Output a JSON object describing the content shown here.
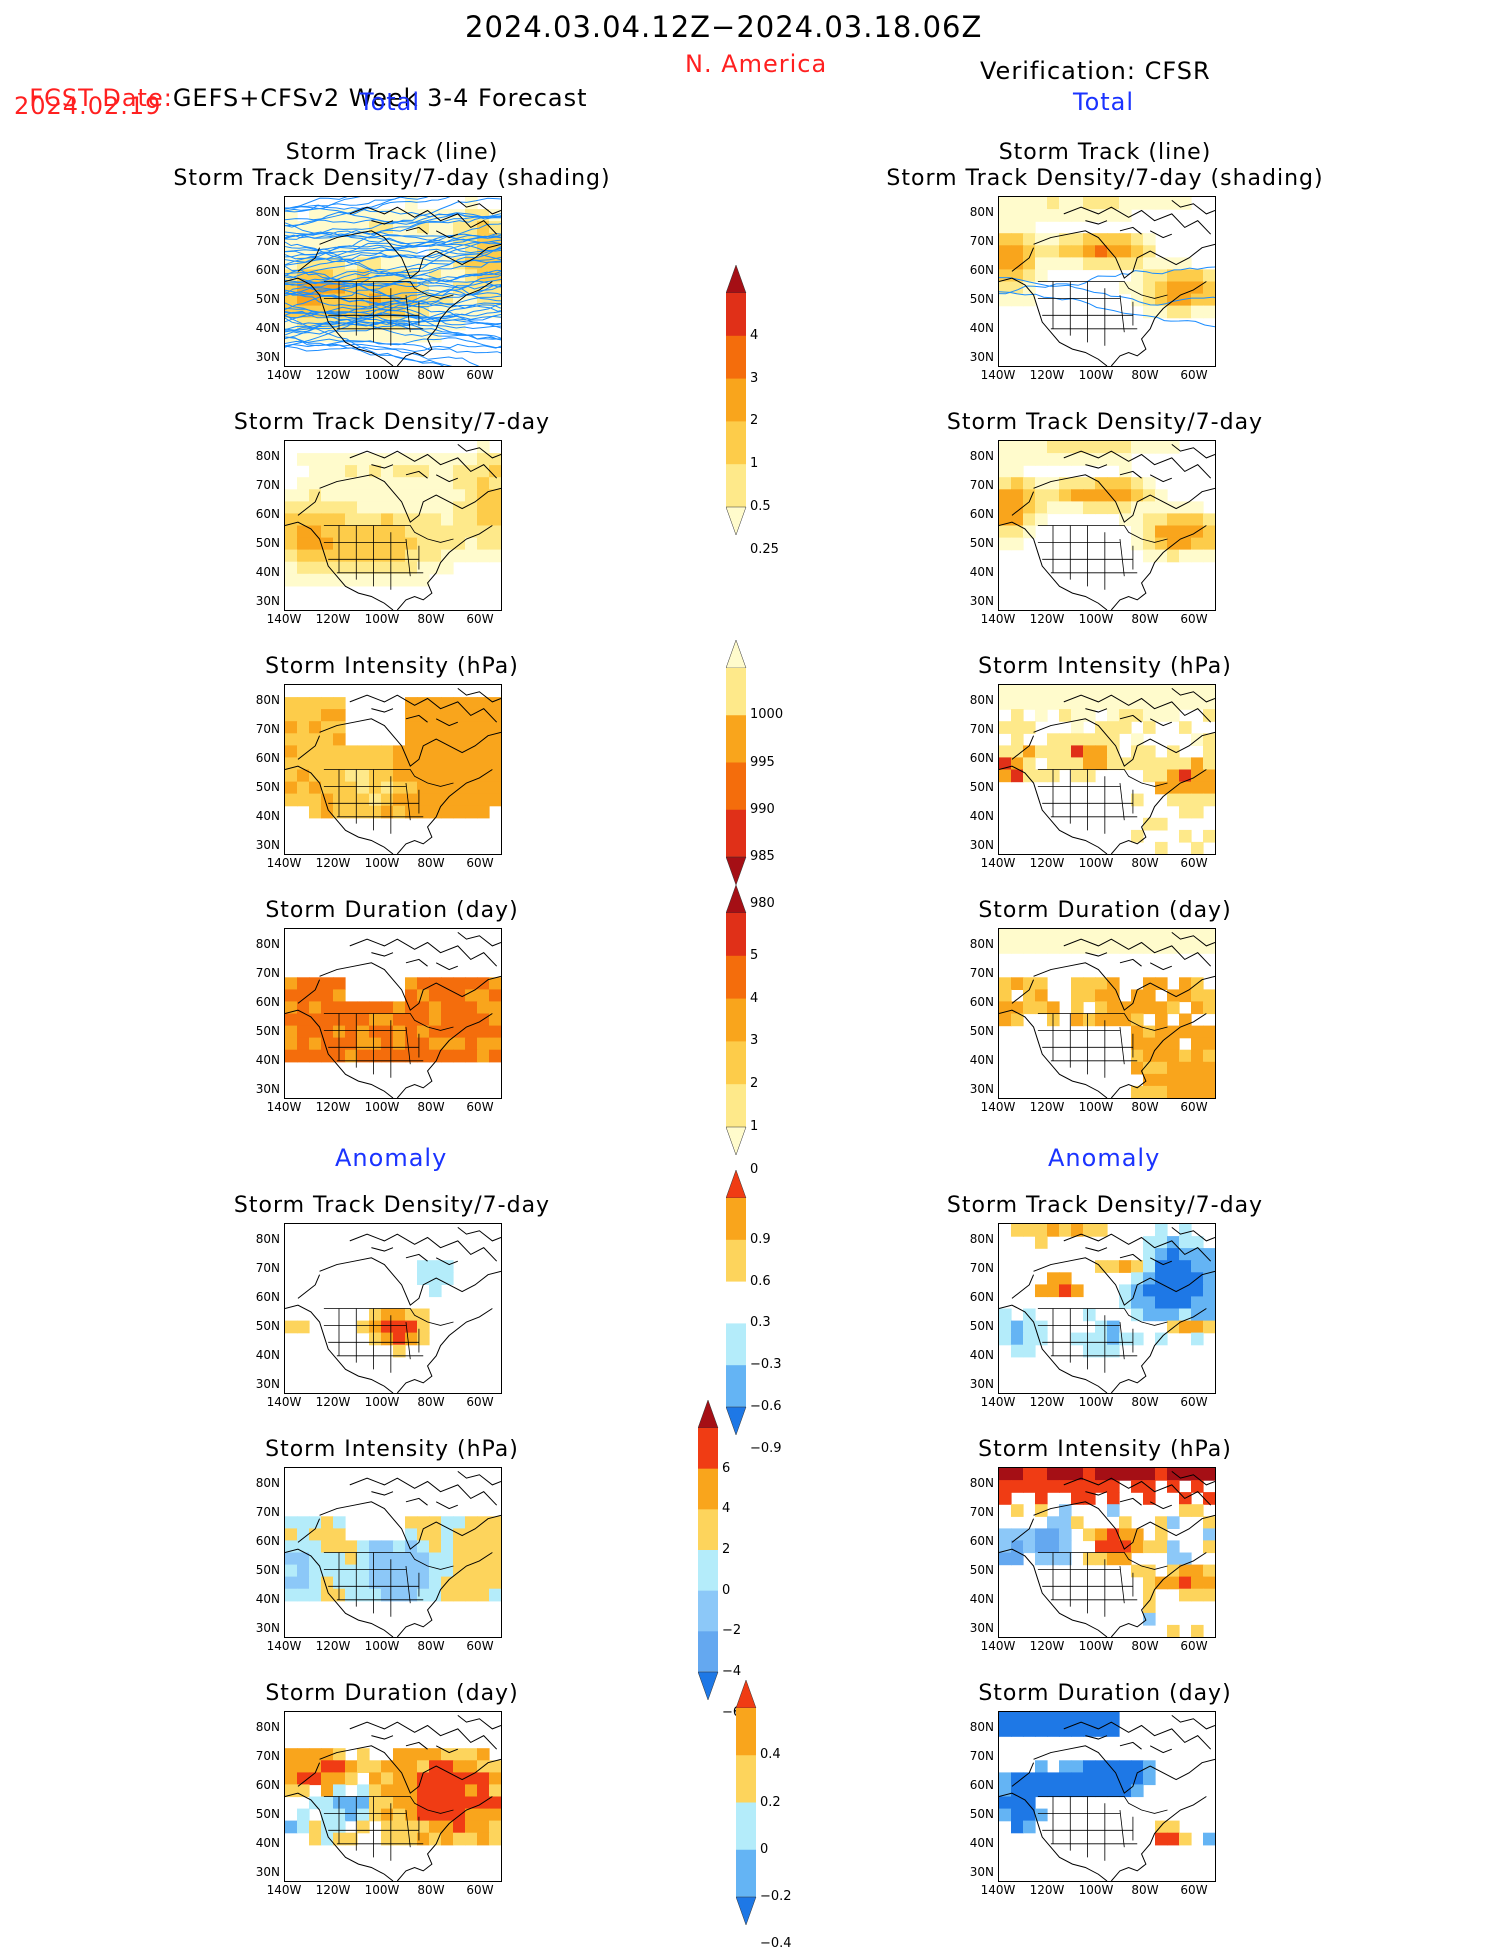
{
  "header": {
    "period": "2024.03.04.12Z−2024.03.18.06Z",
    "fcst_prefix": "FCST Date:",
    "fcst_model": "GEFS+CFSv2 Week 3-4 Forecast",
    "fcst_date": "2024.02.19",
    "region": "N. America",
    "verification": "Verification: CFSR",
    "total_left": "Total",
    "total_right": "Total",
    "anomaly_left": "Anomaly",
    "anomaly_right": "Anomaly"
  },
  "axes": {
    "lat_labels": [
      "80N",
      "70N",
      "60N",
      "50N",
      "40N",
      "30N"
    ],
    "lon_labels": [
      "140W",
      "120W",
      "100W",
      "80W",
      "60W"
    ]
  },
  "colors": {
    "title_red": "#ff2020",
    "blue_label": "#1a33ff",
    "track_line": "#1a8cff",
    "coast": "#000000"
  },
  "panels": {
    "left": [
      {
        "title": "Storm Track (line)\nStorm Track Density/7-day (shading)",
        "field": "density_fc",
        "tracks": true
      },
      {
        "title": "Storm Track Density/7-day",
        "field": "density_fc"
      },
      {
        "title": "Storm Intensity (hPa)",
        "field": "intensity_fc"
      },
      {
        "title": "Storm Duration (day)",
        "field": "duration_fc"
      },
      {
        "title": "Storm Track Density/7-day",
        "field": "density_anom_fc"
      },
      {
        "title": "Storm Intensity (hPa)",
        "field": "intensity_anom_fc"
      },
      {
        "title": "Storm Duration (day)",
        "field": "duration_anom_fc"
      }
    ],
    "right": [
      {
        "title": "Storm Track (line)\nStorm Track Density/7-day (shading)",
        "field": "density_ob",
        "tracks": true
      },
      {
        "title": "Storm Track Density/7-day",
        "field": "density_ob"
      },
      {
        "title": "Storm Intensity (hPa)",
        "field": "intensity_ob"
      },
      {
        "title": "Storm Duration (day)",
        "field": "duration_ob"
      },
      {
        "title": "Storm Track Density/7-day",
        "field": "density_anom_ob"
      },
      {
        "title": "Storm Intensity (hPa)",
        "field": "intensity_anom_ob"
      },
      {
        "title": "Storm Duration (day)",
        "field": "duration_anom_ob"
      }
    ]
  },
  "colorbars": [
    {
      "name": "density-total-colorbar",
      "labels": [
        "4",
        "3",
        "2",
        "1",
        "0.5",
        "0.25"
      ],
      "colors": [
        "#a50f15",
        "#e03018",
        "#f46d0c",
        "#f9a51c",
        "#fdcc4a",
        "#fee98a",
        "#fffbcc"
      ]
    },
    {
      "name": "intensity-total-colorbar",
      "labels": [
        "1000",
        "995",
        "990",
        "985",
        "980"
      ],
      "colors": [
        "#fffbcc",
        "#fee98a",
        "#f9a51c",
        "#f46d0c",
        "#e03018",
        "#a50f15"
      ]
    },
    {
      "name": "duration-total-colorbar",
      "labels": [
        "5",
        "4",
        "3",
        "2",
        "1",
        "0"
      ],
      "colors": [
        "#a50f15",
        "#e03018",
        "#f46d0c",
        "#f9a51c",
        "#fdcc4a",
        "#fee98a",
        "#fffbcc"
      ]
    },
    {
      "name": "density-anomaly-colorbar",
      "labels": [
        "0.9",
        "0.6",
        "0.3",
        "−0.3",
        "−0.6",
        "−0.9"
      ],
      "colors": [
        "#f03c14",
        "#f9a51c",
        "#fdd45c",
        "#ffffff",
        "#b4ecfa",
        "#64b4f4",
        "#1e78e6"
      ]
    },
    {
      "name": "intensity-anomaly-colorbar",
      "labels": [
        "6",
        "4",
        "2",
        "0",
        "−2",
        "−4",
        "−6"
      ],
      "colors": [
        "#a50f15",
        "#f03c14",
        "#f9a51c",
        "#fdd45c",
        "#b4ecfa",
        "#8cc8f8",
        "#64a8f0",
        "#1e78e6"
      ]
    },
    {
      "name": "duration-anomaly-colorbar",
      "labels": [
        "0.4",
        "0.2",
        "0",
        "−0.2",
        "−0.4"
      ],
      "colors": [
        "#f03c14",
        "#f9a51c",
        "#fdd45c",
        "#b4ecfa",
        "#64b4f4",
        "#1e78e6"
      ]
    }
  ]
}
